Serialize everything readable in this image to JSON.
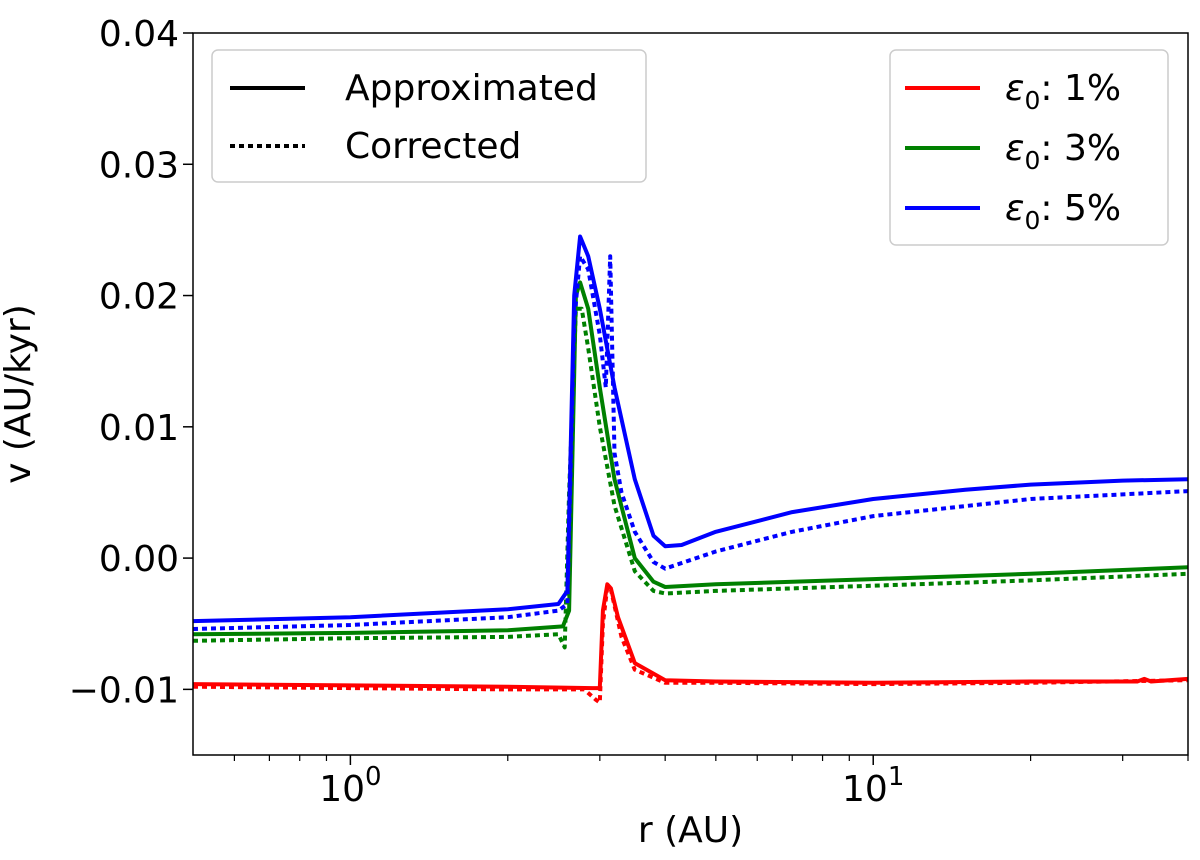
{
  "chart_data": {
    "type": "line",
    "title": "",
    "xlabel": "r (AU)",
    "ylabel": "v (AU/kyr)",
    "xscale": "log",
    "xlim": [
      0.5,
      40
    ],
    "ylim": [
      -0.015,
      0.04
    ],
    "grid": false,
    "xticks": [
      {
        "value": 1,
        "label": "10",
        "exp": "0"
      },
      {
        "value": 10,
        "label": "10",
        "exp": "1"
      }
    ],
    "yticks": [
      {
        "value": -0.01,
        "label": "−0.01"
      },
      {
        "value": 0.0,
        "label": "0.00"
      },
      {
        "value": 0.01,
        "label": "0.01"
      },
      {
        "value": 0.02,
        "label": "0.02"
      },
      {
        "value": 0.03,
        "label": "0.03"
      },
      {
        "value": 0.04,
        "label": "0.04"
      }
    ],
    "legend_style": {
      "placement": "top-left",
      "entries": [
        {
          "label": "Approximated",
          "dash": "solid"
        },
        {
          "label": "Corrected",
          "dash": "dotted"
        }
      ]
    },
    "legend_series": {
      "placement": "top-right",
      "entries": [
        {
          "symbol": "ε",
          "sub": "0",
          "text": ": 1%",
          "color": "#ff0000"
        },
        {
          "symbol": "ε",
          "sub": "0",
          "text": ": 3%",
          "color": "#008000"
        },
        {
          "symbol": "ε",
          "sub": "0",
          "text": ": 5%",
          "color": "#0000ff"
        }
      ]
    },
    "series": [
      {
        "name": "ε0: 1% Approximated",
        "color": "#ff0000",
        "dash": "solid",
        "x": [
          0.5,
          1.0,
          2.0,
          2.9,
          3.0,
          3.04,
          3.1,
          3.15,
          3.25,
          3.5,
          4.0,
          5.0,
          10.0,
          20.0,
          32.0,
          33.0,
          34.0,
          40.0
        ],
        "y": [
          -0.0096,
          -0.0097,
          -0.0098,
          -0.0099,
          -0.0099,
          -0.004,
          -0.002,
          -0.0023,
          -0.0045,
          -0.008,
          -0.0093,
          -0.0094,
          -0.0095,
          -0.0094,
          -0.0094,
          -0.0092,
          -0.0094,
          -0.0092
        ]
      },
      {
        "name": "ε0: 1% Corrected",
        "color": "#ff0000",
        "dash": "dotted",
        "x": [
          0.5,
          1.0,
          2.0,
          2.8,
          2.95,
          3.0,
          3.04,
          3.1,
          3.15,
          3.3,
          3.5,
          4.0,
          5.0,
          10.0,
          20.0,
          40.0
        ],
        "y": [
          -0.0098,
          -0.0099,
          -0.01,
          -0.01,
          -0.0108,
          -0.011,
          -0.005,
          -0.0022,
          -0.0024,
          -0.006,
          -0.0085,
          -0.0095,
          -0.0095,
          -0.0096,
          -0.0095,
          -0.0093
        ]
      },
      {
        "name": "ε0: 3% Approximated",
        "color": "#008000",
        "dash": "solid",
        "x": [
          0.5,
          1.0,
          2.0,
          2.55,
          2.62,
          2.7,
          2.75,
          2.85,
          3.0,
          3.2,
          3.5,
          3.8,
          4.0,
          5.0,
          10.0,
          20.0,
          40.0
        ],
        "y": [
          -0.0058,
          -0.0057,
          -0.0055,
          -0.0052,
          -0.004,
          0.02,
          0.021,
          0.019,
          0.013,
          0.006,
          0.0,
          -0.0018,
          -0.0022,
          -0.002,
          -0.0016,
          -0.0012,
          -0.0007
        ]
      },
      {
        "name": "ε0: 3% Corrected",
        "color": "#008000",
        "dash": "dotted",
        "x": [
          0.5,
          1.0,
          2.0,
          2.5,
          2.57,
          2.62,
          2.7,
          2.77,
          2.85,
          3.0,
          3.2,
          3.5,
          3.8,
          4.0,
          5.0,
          10.0,
          20.0,
          40.0
        ],
        "y": [
          -0.0063,
          -0.0061,
          -0.006,
          -0.0058,
          -0.0068,
          0.005,
          0.019,
          0.019,
          0.016,
          0.01,
          0.004,
          -0.001,
          -0.0025,
          -0.0027,
          -0.0025,
          -0.0021,
          -0.0017,
          -0.0012
        ]
      },
      {
        "name": "ε0: 5% Approximated",
        "color": "#0000ff",
        "dash": "solid",
        "x": [
          0.5,
          1.0,
          2.0,
          2.5,
          2.6,
          2.68,
          2.75,
          2.85,
          3.0,
          3.2,
          3.5,
          3.8,
          4.0,
          4.3,
          5.0,
          7.0,
          10.0,
          15.0,
          20.0,
          30.0,
          40.0
        ],
        "y": [
          -0.0048,
          -0.0045,
          -0.0039,
          -0.0035,
          -0.0025,
          0.02,
          0.0245,
          0.023,
          0.019,
          0.013,
          0.006,
          0.0017,
          0.0009,
          0.001,
          0.002,
          0.0035,
          0.0045,
          0.0052,
          0.0056,
          0.0059,
          0.006
        ]
      },
      {
        "name": "ε0: 5% Corrected",
        "color": "#0000ff",
        "dash": "dotted",
        "x": [
          0.5,
          1.0,
          2.0,
          2.5,
          2.6,
          2.68,
          2.75,
          2.85,
          3.0,
          3.08,
          3.14,
          3.2,
          3.3,
          3.5,
          3.8,
          4.0,
          5.0,
          7.0,
          10.0,
          20.0,
          40.0
        ],
        "y": [
          -0.0054,
          -0.0051,
          -0.0045,
          -0.004,
          -0.0035,
          0.018,
          0.023,
          0.022,
          0.017,
          0.013,
          0.023,
          0.008,
          0.005,
          0.002,
          -0.0003,
          -0.0008,
          0.0005,
          0.002,
          0.0032,
          0.0045,
          0.0051
        ]
      }
    ]
  }
}
